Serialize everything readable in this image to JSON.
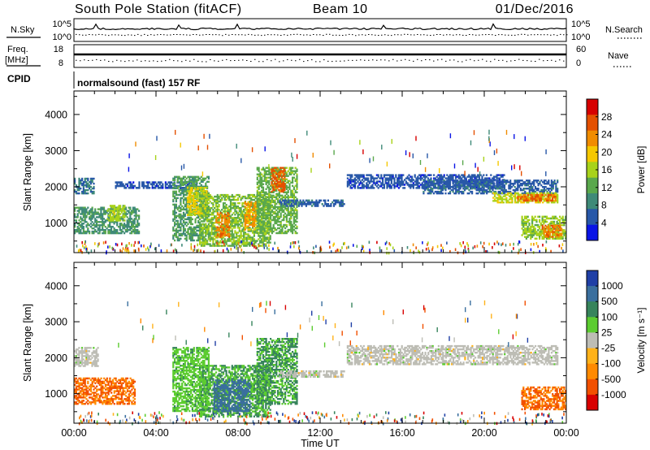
{
  "header": {
    "station": "South Pole Station (fitACF)",
    "beam": "Beam 10",
    "date": "01/Dec/2016"
  },
  "noise_panel": {
    "left_label": "N.Sky",
    "left_ticks": [
      "10^5",
      "10^0"
    ],
    "right_label": "N.Search",
    "right_ticks": [
      "10^5",
      "10^0"
    ]
  },
  "freq_panel": {
    "left_label_1": "Freq.",
    "left_label_2": "[MHz]",
    "left_ticks": [
      "18",
      "8"
    ],
    "right_label": "Nave",
    "right_ticks": [
      "60",
      "0"
    ]
  },
  "cpid_panel": {
    "label": "CPID",
    "program": "normalsound (fast) 157 RF"
  },
  "icons": {
    "colorbar_power": "power-colorbar",
    "colorbar_velocity": "velocity-colorbar"
  },
  "colors": {
    "power_scale": [
      "#0a14e6",
      "#2858a8",
      "#3f8a78",
      "#5aa84c",
      "#a8d21a",
      "#f5c800",
      "#f08c00",
      "#e45000",
      "#d70000"
    ],
    "velocity_scale": [
      "#1f3fa6",
      "#3a6f9e",
      "#37845c",
      "#5ccc30",
      "#bdbdb5",
      "#ffb21a",
      "#ff8a00",
      "#f25000",
      "#d80000"
    ],
    "ground_scatter": "#bdbdb5"
  },
  "chart_data": [
    {
      "type": "heatmap",
      "name": "power",
      "xlabel": "",
      "ylabel": "Slant Range [km]",
      "xlim": [
        0,
        24
      ],
      "ylim": [
        180,
        4650
      ],
      "y_ticks": [
        "1000",
        "2000",
        "3000",
        "4000"
      ],
      "x_ticks": [
        "00:00",
        "04:00",
        "08:00",
        "12:00",
        "16:00",
        "20:00",
        "00:00"
      ],
      "colorbar": {
        "label": "Power [dB]",
        "range": [
          0,
          32
        ],
        "ticks": [
          "4",
          "8",
          "12",
          "16",
          "20",
          "24",
          "28"
        ]
      },
      "regions": [
        {
          "x": [
            0.0,
            1.0
          ],
          "y": [
            1800,
            2250
          ],
          "value": 7
        },
        {
          "x": [
            0.0,
            3.2
          ],
          "y": [
            700,
            1450
          ],
          "value": 10
        },
        {
          "x": [
            1.6,
            2.5
          ],
          "y": [
            1050,
            1500
          ],
          "value": 16
        },
        {
          "x": [
            2.0,
            6.0
          ],
          "y": [
            1950,
            2150
          ],
          "value": 5
        },
        {
          "x": [
            4.8,
            6.6
          ],
          "y": [
            500,
            2300
          ],
          "value": 11
        },
        {
          "x": [
            5.5,
            6.5
          ],
          "y": [
            1200,
            2000
          ],
          "value": 18
        },
        {
          "x": [
            6.1,
            9.6
          ],
          "y": [
            350,
            1800
          ],
          "value": 14
        },
        {
          "x": [
            6.9,
            7.6
          ],
          "y": [
            600,
            1300
          ],
          "value": 24
        },
        {
          "x": [
            8.3,
            8.9
          ],
          "y": [
            800,
            1600
          ],
          "value": 22
        },
        {
          "x": [
            8.9,
            10.9
          ],
          "y": [
            700,
            2550
          ],
          "value": 13
        },
        {
          "x": [
            9.6,
            10.3
          ],
          "y": [
            1850,
            2550
          ],
          "value": 26
        },
        {
          "x": [
            10.0,
            13.2
          ],
          "y": [
            1450,
            1650
          ],
          "value": 6
        },
        {
          "x": [
            13.3,
            21.0
          ],
          "y": [
            1950,
            2350
          ],
          "value": 5
        },
        {
          "x": [
            17.0,
            23.6
          ],
          "y": [
            1800,
            2200
          ],
          "value": 6
        },
        {
          "x": [
            20.4,
            23.6
          ],
          "y": [
            1550,
            1850
          ],
          "value": 17
        },
        {
          "x": [
            21.6,
            23.5
          ],
          "y": [
            1600,
            1800
          ],
          "value": 25
        },
        {
          "x": [
            21.8,
            24.0
          ],
          "y": [
            550,
            1200
          ],
          "value": 15
        },
        {
          "x": [
            22.8,
            23.8
          ],
          "y": [
            600,
            950
          ],
          "value": 24
        }
      ]
    },
    {
      "type": "heatmap",
      "name": "velocity",
      "xlabel": "Time UT",
      "ylabel": "Slant Range [km]",
      "xlim": [
        0,
        24
      ],
      "ylim": [
        180,
        4650
      ],
      "y_ticks": [
        "1000",
        "2000",
        "3000",
        "4000"
      ],
      "x_ticks": [
        "00:00",
        "04:00",
        "08:00",
        "12:00",
        "16:00",
        "20:00",
        "00:00"
      ],
      "colorbar": {
        "label": "Velocity [m s⁻¹]",
        "range": [
          -1250,
          1250
        ],
        "ticks": [
          "1000",
          "500",
          "100",
          "25",
          "-25",
          "-100",
          "-500",
          "-1000"
        ]
      },
      "regions": [
        {
          "x": [
            0.0,
            1.2
          ],
          "y": [
            1750,
            2300
          ],
          "value": 0
        },
        {
          "x": [
            0.0,
            3.0
          ],
          "y": [
            700,
            1450
          ],
          "value": -700
        },
        {
          "x": [
            4.8,
            6.6
          ],
          "y": [
            500,
            2300
          ],
          "value": 300
        },
        {
          "x": [
            6.1,
            9.6
          ],
          "y": [
            350,
            1800
          ],
          "value": 400
        },
        {
          "x": [
            6.8,
            8.6
          ],
          "y": [
            500,
            1400
          ],
          "value": 800
        },
        {
          "x": [
            8.9,
            10.9
          ],
          "y": [
            700,
            2550
          ],
          "value": 450
        },
        {
          "x": [
            10.0,
            13.2
          ],
          "y": [
            1450,
            1650
          ],
          "value": 0
        },
        {
          "x": [
            13.3,
            23.6
          ],
          "y": [
            1800,
            2350
          ],
          "value": 0
        },
        {
          "x": [
            21.8,
            24.0
          ],
          "y": [
            550,
            1200
          ],
          "value": -700
        }
      ]
    }
  ]
}
